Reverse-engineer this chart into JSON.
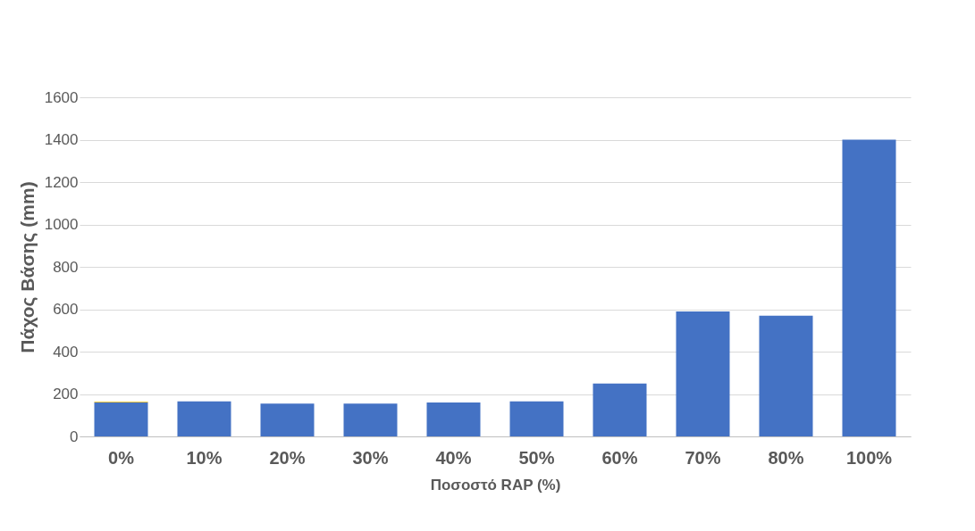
{
  "chart_data": {
    "type": "bar",
    "xlabel": "Ποσοστό RAP (%)",
    "ylabel": "Πάχος Βάσης (mm)",
    "categories": [
      "0%",
      "10%",
      "20%",
      "30%",
      "40%",
      "50%",
      "60%",
      "70%",
      "80%",
      "100%"
    ],
    "stacked": true,
    "series": [
      {
        "color": "#4472c4",
        "values": [
          161,
          165,
          155,
          155,
          160,
          165,
          250,
          590,
          570,
          1400
        ]
      },
      {
        "color": "#ffc000",
        "values": [
          3,
          null,
          null,
          null,
          null,
          null,
          null,
          null,
          null,
          null
        ]
      }
    ],
    "ylim": [
      0,
      1600
    ],
    "yticks": [
      0,
      200,
      400,
      600,
      800,
      1000,
      1200,
      1400,
      1600
    ],
    "grid": "y",
    "legend": false
  }
}
